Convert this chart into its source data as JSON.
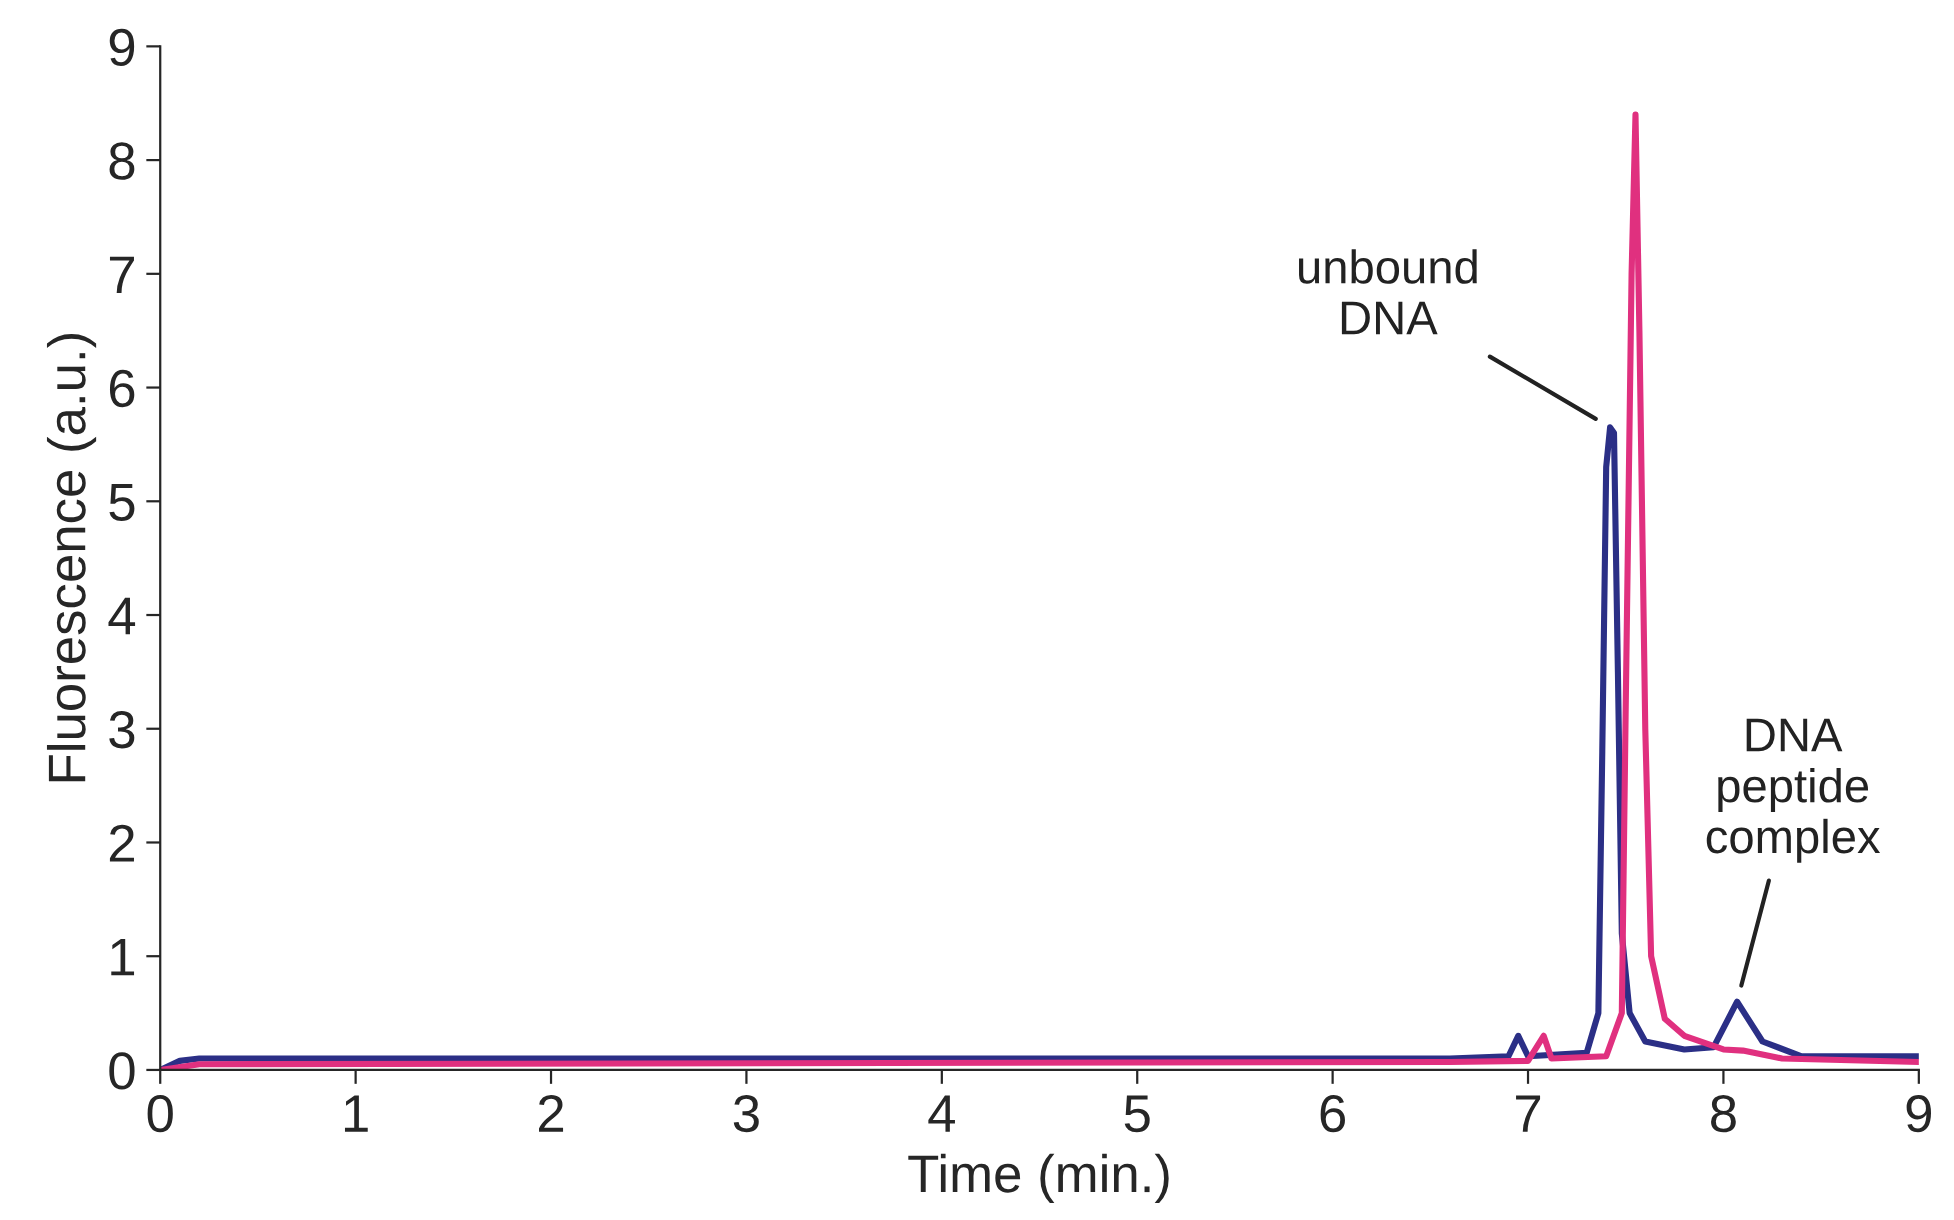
{
  "chart_data": {
    "type": "line",
    "xlabel": "Time (min.)",
    "ylabel": "Fluorescence (a.u.)",
    "xlim": [
      0,
      9
    ],
    "xticks": [
      0,
      1,
      2,
      3,
      4,
      5,
      6,
      7,
      8,
      9
    ],
    "ylim": [
      0,
      9
    ],
    "yticks": [
      0,
      1,
      2,
      3,
      4,
      5,
      6,
      7,
      8,
      9
    ],
    "grid": false,
    "legend": false,
    "marker": "none",
    "line_style": "solid",
    "series": [
      {
        "color": "#2b2f86",
        "x": [
          0,
          0.1,
          0.2,
          3.0,
          6.6,
          6.9,
          6.95,
          7.0,
          7.3,
          7.36,
          7.38,
          7.4,
          7.42,
          7.44,
          7.46,
          7.48,
          7.52,
          7.6,
          7.8,
          7.95,
          8.07,
          8.2,
          8.4,
          9.0
        ],
        "values": [
          0,
          0.08,
          0.1,
          0.1,
          0.1,
          0.12,
          0.3,
          0.12,
          0.15,
          0.5,
          2.8,
          5.3,
          5.65,
          5.6,
          3.5,
          1.2,
          0.5,
          0.25,
          0.18,
          0.2,
          0.6,
          0.25,
          0.12,
          0.12
        ]
      },
      {
        "color": "#e0307f",
        "x": [
          0,
          0.2,
          6.6,
          7.0,
          7.08,
          7.12,
          7.4,
          7.48,
          7.5,
          7.53,
          7.55,
          7.57,
          7.6,
          7.63,
          7.7,
          7.8,
          8.0,
          8.1,
          8.3,
          9.0
        ],
        "values": [
          0,
          0.05,
          0.07,
          0.08,
          0.3,
          0.1,
          0.12,
          0.5,
          3.2,
          7.0,
          8.4,
          6.5,
          3.0,
          1.0,
          0.45,
          0.3,
          0.18,
          0.17,
          0.1,
          0.07
        ]
      }
    ],
    "annotations": [
      {
        "text": "unbound\nDNA",
        "x": 7.42,
        "y": 5.65
      },
      {
        "text": "DNA\npeptide\ncomplex",
        "x": 8.07,
        "y": 0.6
      }
    ]
  }
}
